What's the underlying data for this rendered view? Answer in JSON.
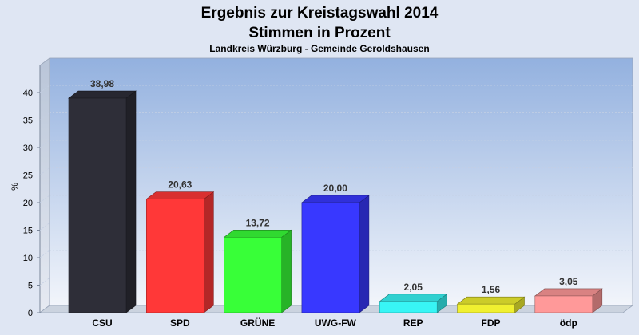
{
  "chart_data": {
    "type": "bar",
    "title": "Ergebnis zur Kreistagswahl 2014",
    "title_line2": "Stimmen in Prozent",
    "subtitle": "Landkreis Würzburg - Gemeinde Geroldshausen",
    "xlabel": "",
    "ylabel": "%",
    "ylim": [
      0,
      40
    ],
    "yticks": [
      0,
      5,
      10,
      15,
      20,
      25,
      30,
      35,
      40
    ],
    "categories": [
      "CSU",
      "SPD",
      "GRÜNE",
      "UWG-FW",
      "REP",
      "FDP",
      "ödp"
    ],
    "values": [
      38.98,
      20.63,
      13.72,
      20.0,
      2.05,
      1.56,
      3.05
    ],
    "value_labels": [
      "38,98",
      "20,63",
      "13,72",
      "20,00",
      "2,05",
      "1,56",
      "3,05"
    ],
    "colors": [
      "#2e2e38",
      "#ff3838",
      "#38ff38",
      "#3838ff",
      "#38f5f5",
      "#f0f030",
      "#ff9999"
    ],
    "grid": true,
    "style": "3d-bars"
  }
}
